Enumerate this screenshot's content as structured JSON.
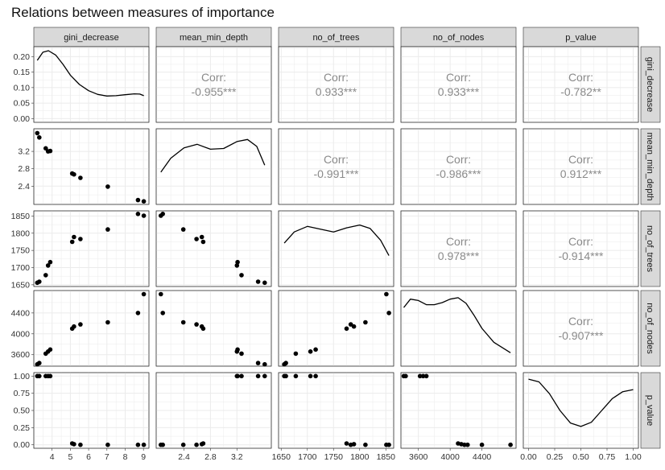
{
  "chart_data": {
    "type": "scatter-matrix",
    "title": "Relations between measures of importance",
    "variables": [
      "gini_decrease",
      "mean_min_depth",
      "no_of_trees",
      "no_of_nodes",
      "p_value"
    ],
    "row_labels": [
      "gini_decrease",
      "mean_min_depth",
      "no_of_trees",
      "no_of_nodes",
      "p_value"
    ],
    "axes": {
      "gini_decrease": {
        "range": [
          3.0,
          9.3
        ],
        "ticks": [
          "4",
          "5",
          "6",
          "7",
          "8",
          "9"
        ],
        "tick_values": [
          4,
          5,
          6,
          7,
          8,
          9
        ]
      },
      "mean_min_depth": {
        "range": [
          1.98,
          3.72
        ],
        "ticks": [
          "2.4",
          "2.8",
          "3.2"
        ],
        "tick_values": [
          2.4,
          2.8,
          3.2
        ]
      },
      "no_of_trees": {
        "range": [
          1645,
          1865
        ],
        "ticks": [
          "1650",
          "1700",
          "1750",
          "1800",
          "1850"
        ],
        "tick_values": [
          1650,
          1700,
          1750,
          1800,
          1850
        ]
      },
      "no_of_nodes": {
        "range": [
          3380,
          4830
        ],
        "ticks": [
          "3600",
          "4000",
          "4400"
        ],
        "tick_values": [
          3600,
          4000,
          4400
        ]
      },
      "p_value": {
        "range": [
          -0.05,
          1.05
        ],
        "ticks": [
          "0.00",
          "0.25",
          "0.50",
          "0.75",
          "1.00"
        ],
        "tick_values": [
          0,
          0.25,
          0.5,
          0.75,
          1.0
        ]
      }
    },
    "density_y_axis": {
      "range": [
        -0.012,
        0.232
      ],
      "ticks": [
        "0.00",
        "0.05",
        "0.10",
        "0.15",
        "0.20"
      ],
      "tick_values": [
        0,
        0.05,
        0.1,
        0.15,
        0.2
      ]
    },
    "points": [
      {
        "gini_decrease": 3.19,
        "mean_min_depth": 3.62,
        "no_of_trees": 1656,
        "no_of_nodes": 3415,
        "p_value": 1.0
      },
      {
        "gini_decrease": 3.3,
        "mean_min_depth": 3.52,
        "no_of_trees": 1659,
        "no_of_nodes": 3440,
        "p_value": 1.0
      },
      {
        "gini_decrease": 3.65,
        "mean_min_depth": 3.27,
        "no_of_trees": 1678,
        "no_of_nodes": 3620,
        "p_value": 1.0
      },
      {
        "gini_decrease": 3.78,
        "mean_min_depth": 3.2,
        "no_of_trees": 1706,
        "no_of_nodes": 3660,
        "p_value": 1.0
      },
      {
        "gini_decrease": 3.9,
        "mean_min_depth": 3.21,
        "no_of_trees": 1716,
        "no_of_nodes": 3700,
        "p_value": 1.0
      },
      {
        "gini_decrease": 5.1,
        "mean_min_depth": 2.69,
        "no_of_trees": 1775,
        "no_of_nodes": 4100,
        "p_value": 0.02
      },
      {
        "gini_decrease": 5.2,
        "mean_min_depth": 2.67,
        "no_of_trees": 1789,
        "no_of_nodes": 4140,
        "p_value": 0.01
      },
      {
        "gini_decrease": 5.55,
        "mean_min_depth": 2.59,
        "no_of_trees": 1783,
        "no_of_nodes": 4180,
        "p_value": 0.0
      },
      {
        "gini_decrease": 7.05,
        "mean_min_depth": 2.39,
        "no_of_trees": 1811,
        "no_of_nodes": 4220,
        "p_value": 0.0
      },
      {
        "gini_decrease": 8.7,
        "mean_min_depth": 2.08,
        "no_of_trees": 1856,
        "no_of_nodes": 4400,
        "p_value": 0.0
      },
      {
        "gini_decrease": 9.02,
        "mean_min_depth": 2.05,
        "no_of_trees": 1851,
        "no_of_nodes": 4760,
        "p_value": 0.0
      }
    ],
    "correlations": [
      {
        "row": 0,
        "col": 1,
        "label": "Corr:",
        "value": "-0.955***"
      },
      {
        "row": 0,
        "col": 2,
        "label": "Corr:",
        "value": "0.933***"
      },
      {
        "row": 0,
        "col": 3,
        "label": "Corr:",
        "value": "0.933***"
      },
      {
        "row": 0,
        "col": 4,
        "label": "Corr:",
        "value": "-0.782**"
      },
      {
        "row": 1,
        "col": 2,
        "label": "Corr:",
        "value": "-0.991***"
      },
      {
        "row": 1,
        "col": 3,
        "label": "Corr:",
        "value": "-0.986***"
      },
      {
        "row": 1,
        "col": 4,
        "label": "Corr:",
        "value": "0.912***"
      },
      {
        "row": 2,
        "col": 3,
        "label": "Corr:",
        "value": "0.978***"
      },
      {
        "row": 2,
        "col": 4,
        "label": "Corr:",
        "value": "-0.914***"
      },
      {
        "row": 3,
        "col": 4,
        "label": "Corr:",
        "value": "-0.907***"
      }
    ],
    "densities": {
      "gini_decrease": [
        [
          3.19,
          0.188
        ],
        [
          3.5,
          0.214
        ],
        [
          3.8,
          0.219
        ],
        [
          4.2,
          0.205
        ],
        [
          4.6,
          0.175
        ],
        [
          5.0,
          0.14
        ],
        [
          5.5,
          0.11
        ],
        [
          6.0,
          0.09
        ],
        [
          6.5,
          0.078
        ],
        [
          7.0,
          0.073
        ],
        [
          7.5,
          0.074
        ],
        [
          8.0,
          0.077
        ],
        [
          8.5,
          0.08
        ],
        [
          8.8,
          0.079
        ],
        [
          9.02,
          0.074
        ]
      ],
      "mean_min_depth": [
        [
          2.05,
          0.42
        ],
        [
          2.2,
          0.62
        ],
        [
          2.4,
          0.77
        ],
        [
          2.6,
          0.82
        ],
        [
          2.8,
          0.75
        ],
        [
          3.0,
          0.76
        ],
        [
          3.2,
          0.86
        ],
        [
          3.36,
          0.89
        ],
        [
          3.5,
          0.79
        ],
        [
          3.62,
          0.52
        ]
      ],
      "no_of_trees": [
        [
          1656,
          0.58
        ],
        [
          1675,
          0.74
        ],
        [
          1700,
          0.82
        ],
        [
          1725,
          0.78
        ],
        [
          1750,
          0.74
        ],
        [
          1775,
          0.8
        ],
        [
          1800,
          0.84
        ],
        [
          1820,
          0.79
        ],
        [
          1840,
          0.62
        ],
        [
          1856,
          0.4
        ]
      ],
      "no_of_nodes": [
        [
          3415,
          0.8
        ],
        [
          3500,
          0.92
        ],
        [
          3600,
          0.9
        ],
        [
          3700,
          0.84
        ],
        [
          3800,
          0.84
        ],
        [
          3900,
          0.87
        ],
        [
          4000,
          0.92
        ],
        [
          4100,
          0.94
        ],
        [
          4200,
          0.86
        ],
        [
          4300,
          0.69
        ],
        [
          4400,
          0.5
        ],
        [
          4550,
          0.3
        ],
        [
          4760,
          0.15
        ]
      ],
      "p_value": [
        [
          0.0,
          0.95
        ],
        [
          0.1,
          0.91
        ],
        [
          0.2,
          0.74
        ],
        [
          0.3,
          0.5
        ],
        [
          0.4,
          0.32
        ],
        [
          0.5,
          0.27
        ],
        [
          0.6,
          0.33
        ],
        [
          0.7,
          0.5
        ],
        [
          0.8,
          0.67
        ],
        [
          0.9,
          0.77
        ],
        [
          1.0,
          0.8
        ]
      ]
    }
  }
}
